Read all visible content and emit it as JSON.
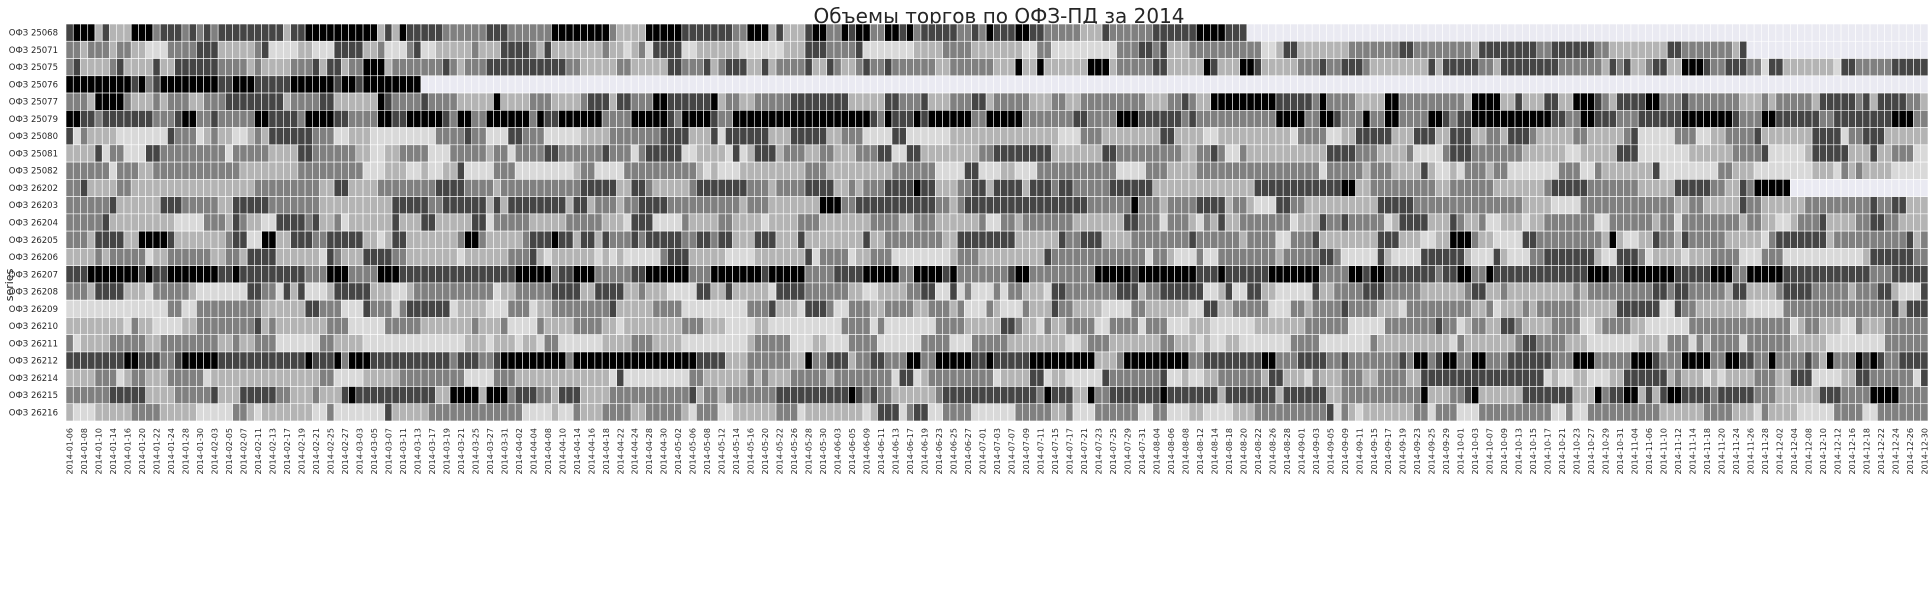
{
  "chart_data": {
    "type": "heatmap",
    "title": "Объемы торгов по ОФЗ-ПД за 2014",
    "ylabel": "series",
    "xlabel": "",
    "rows": [
      "ОФЗ 25068",
      "ОФЗ 25071",
      "ОФЗ 25075",
      "ОФЗ 25076",
      "ОФЗ 25077",
      "ОФЗ 25079",
      "ОФЗ 25080",
      "ОФЗ 25081",
      "ОФЗ 25082",
      "ОФЗ 26202",
      "ОФЗ 26203",
      "ОФЗ 26204",
      "ОФЗ 26205",
      "ОФЗ 26206",
      "ОФЗ 26207",
      "ОФЗ 26208",
      "ОФЗ 26209",
      "ОФЗ 26210",
      "ОФЗ 26211",
      "ОФЗ 26212",
      "ОФЗ 26214",
      "ОФЗ 26215",
      "ОФЗ 26216"
    ],
    "date_start": "2014-01-06",
    "date_end": "2014-12-30",
    "tick_step_days": 2,
    "levels_scale": "0 = lightest grey, 4 = black (quintile of daily trading volume per series)",
    "no_data_color": "#eaeaf2",
    "level_colors": [
      "#d9d9d9",
      "#b4b4b4",
      "#808080",
      "#454545",
      "#000000"
    ],
    "grid_line_color": "#ffffff",
    "coverage": [
      {
        "series": "ОФЗ 25068",
        "last_date": "2014-08-20"
      },
      {
        "series": "ОФЗ 25071",
        "last_date": "2014-11-25"
      },
      {
        "series": "ОФЗ 25076",
        "last_date": "2014-03-13"
      },
      {
        "series": "ОФЗ 26202",
        "last_date": "2014-12-03"
      }
    ],
    "row_bias": [
      2.6,
      1.7,
      2.0,
      4.0,
      2.3,
      3.1,
      1.6,
      1.6,
      1.1,
      2.1,
      2.0,
      1.5,
      2.0,
      1.3,
      3.4,
      1.6,
      1.3,
      1.2,
      1.1,
      3.0,
      1.4,
      2.4,
      1.2
    ],
    "legend": "none",
    "grid": true
  }
}
